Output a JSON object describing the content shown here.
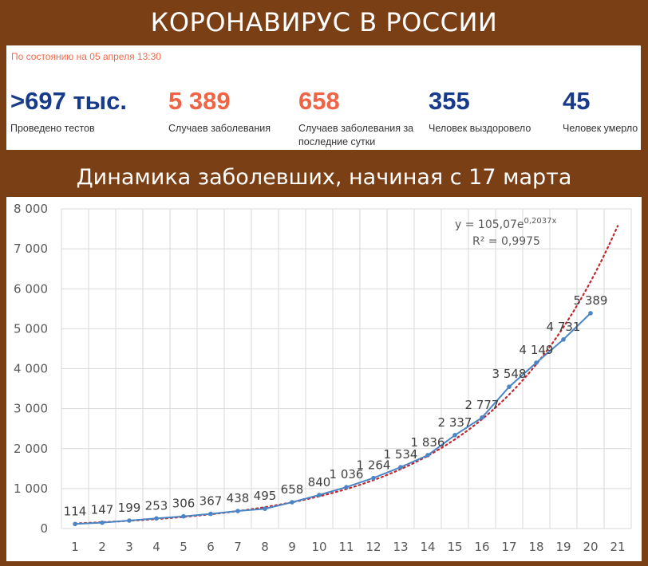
{
  "header": {
    "title": "КОРОНАВИРУС В РОССИИ"
  },
  "stats": {
    "as_of": "По состоянию на 05 апреля 13:30",
    "items": [
      {
        "value": ">697 тыс.",
        "label": "Проведено тестов",
        "color": "#173a8a"
      },
      {
        "value": "5 389",
        "label": "Случаев заболевания",
        "color": "#f06446"
      },
      {
        "value": "658",
        "label": "Случаев заболевания за последние сутки",
        "color": "#f06446"
      },
      {
        "value": "355",
        "label": "Человек выздоровело",
        "color": "#173a8a"
      },
      {
        "value": "45",
        "label": "Человек умерло",
        "color": "#173a8a"
      }
    ]
  },
  "chart_title": "Динамика заболевших, начиная с 17 марта",
  "chart_data": {
    "type": "line",
    "x": [
      1,
      2,
      3,
      4,
      5,
      6,
      7,
      8,
      9,
      10,
      11,
      12,
      13,
      14,
      15,
      16,
      17,
      18,
      19,
      20
    ],
    "categories": [
      "1",
      "2",
      "3",
      "4",
      "5",
      "6",
      "7",
      "8",
      "9",
      "10",
      "11",
      "12",
      "13",
      "14",
      "15",
      "16",
      "17",
      "18",
      "19",
      "20",
      "21"
    ],
    "series": [
      {
        "values": [
          114,
          147,
          199,
          253,
          306,
          367,
          438,
          495,
          658,
          840,
          1036,
          1264,
          1534,
          1836,
          2337,
          2777,
          3548,
          4149,
          4731,
          5389
        ],
        "labels": [
          "114",
          "147",
          "199",
          "253",
          "306",
          "367",
          "438",
          "495",
          "658",
          "840",
          "1 036",
          "1 264",
          "1 534",
          "1 836",
          "2 337",
          "2 777",
          "3 548",
          "4 149",
          "4 731",
          "5 389"
        ],
        "color": "#4a86c5"
      }
    ],
    "trendline": {
      "type": "exponential",
      "a": 105.07,
      "b": 0.2037,
      "x_range": [
        1,
        21
      ],
      "color": "#c0282e",
      "equation_text": "y = 105,07e",
      "equation_exponent": "0,2037x",
      "r2_text": "R² = 0,9975"
    },
    "ylim": [
      0,
      8000
    ],
    "yticks": [
      0,
      1000,
      2000,
      3000,
      4000,
      5000,
      6000,
      7000,
      8000
    ],
    "ytick_labels": [
      "0",
      "1 000",
      "2 000",
      "3 000",
      "4 000",
      "5 000",
      "6 000",
      "7 000",
      "8 000"
    ],
    "xlim": [
      1,
      21
    ],
    "grid": true,
    "gridline_color": "#d9d9d9"
  }
}
